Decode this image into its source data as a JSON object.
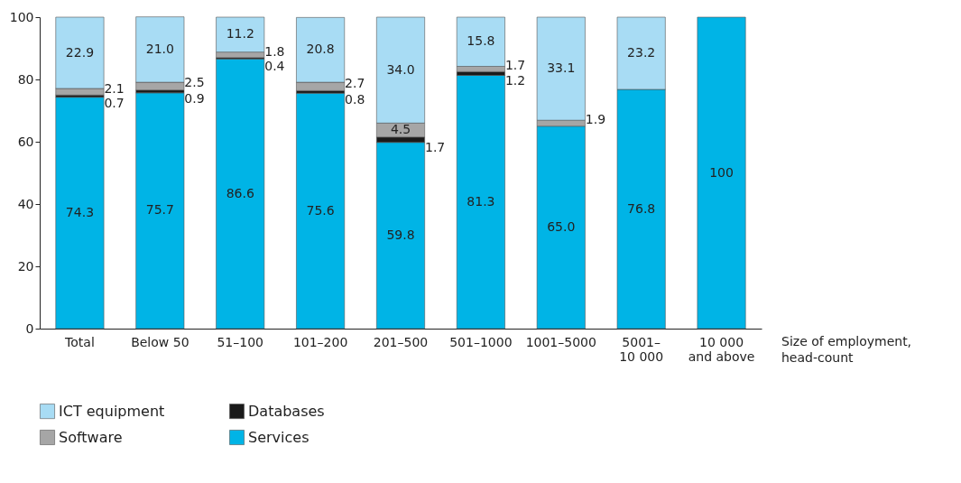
{
  "chart_data": {
    "type": "bar",
    "stacked": true,
    "xlabel": "Size of employment, head-count",
    "categories": [
      "Total",
      "Below 50",
      "51–100",
      "101–200",
      "201–500",
      "501–1000",
      "1001–5000",
      "5001–\n10 000",
      "10 000\nand above"
    ],
    "series": [
      {
        "name": "Services",
        "color": "#00b4e6",
        "values": [
          74.3,
          75.7,
          86.6,
          75.6,
          59.8,
          81.3,
          65.0,
          76.8,
          100
        ],
        "value_labels": [
          "74.3",
          "75.7",
          "86.6",
          "75.6",
          "59.8",
          "81.3",
          "65.0",
          "76.8",
          "100"
        ]
      },
      {
        "name": "Databases",
        "color": "#1a1a1a",
        "values": [
          0.7,
          0.9,
          0.4,
          0.8,
          1.7,
          1.2,
          null,
          null,
          null
        ],
        "value_labels": [
          "0.7",
          "0.9",
          "0.4",
          "0.8",
          "1.7",
          "1.2",
          null,
          null,
          null
        ]
      },
      {
        "name": "Software",
        "color": "#a6a6a6",
        "values": [
          2.1,
          2.5,
          1.8,
          2.7,
          4.5,
          1.7,
          1.9,
          null,
          null
        ],
        "value_labels": [
          "2.1",
          "2.5",
          "1.8",
          "2.7",
          "4.5",
          "1.7",
          "1.9",
          null,
          null
        ]
      },
      {
        "name": "ICT equipment",
        "color": "#a8dcf4",
        "values": [
          22.9,
          21.0,
          11.2,
          20.8,
          34.0,
          15.8,
          33.1,
          23.2,
          null
        ],
        "value_labels": [
          "22.9",
          "21.0",
          "11.2",
          "20.8",
          "34.0",
          "15.8",
          "33.1",
          "23.2",
          null
        ]
      }
    ],
    "ylim": [
      0,
      100
    ],
    "yticks": [
      0,
      20,
      40,
      60,
      80,
      100
    ],
    "grid": false,
    "legend": "bottom"
  }
}
